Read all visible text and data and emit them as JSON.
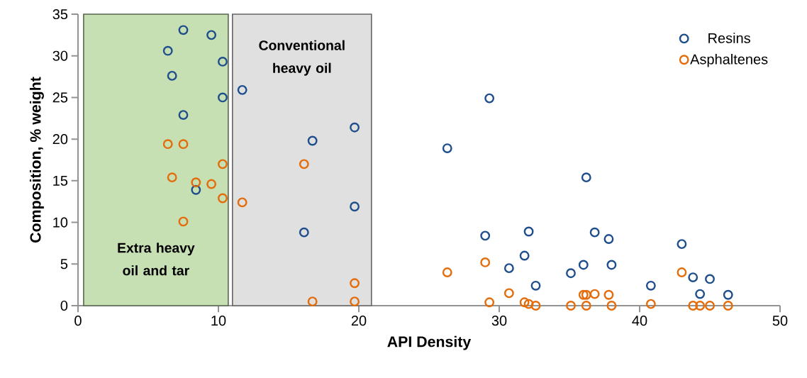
{
  "chart_data": {
    "type": "scatter",
    "xlabel": "API Density",
    "ylabel": "Composition, % weight",
    "xlim": [
      0,
      50
    ],
    "ylim": [
      0,
      35
    ],
    "xticks": [
      0,
      10,
      20,
      30,
      40,
      50
    ],
    "yticks": [
      0,
      5,
      10,
      15,
      20,
      25,
      30,
      35
    ],
    "grid": false,
    "legend": "top right",
    "marker": "circle",
    "bands": [
      {
        "axis": "x",
        "from": 0.4,
        "to": 10.7,
        "label": "Extra heavy oil and tar",
        "color": "#c6e0b4"
      },
      {
        "axis": "x",
        "from": 11.0,
        "to": 20.9,
        "label": "Conventional heavy oil",
        "color": "#e0e0e0"
      }
    ],
    "series": [
      {
        "name": "Resins",
        "color": "#1f4e8c",
        "x": [
          7.5,
          9.5,
          6.4,
          10.3,
          6.7,
          10.3,
          7.5,
          8.4,
          11.7,
          16.7,
          19.7,
          16.1,
          19.7,
          26.3,
          29.3,
          29.0,
          32.1,
          30.7,
          31.8,
          32.6,
          36.2,
          35.1,
          36.0,
          36.8,
          37.8,
          38.0,
          40.8,
          43.0,
          43.8,
          45.0,
          44.3,
          46.3
        ],
        "values": [
          33.1,
          32.5,
          30.6,
          29.3,
          27.6,
          25.0,
          22.9,
          13.9,
          25.9,
          19.8,
          21.4,
          8.8,
          11.9,
          18.9,
          24.9,
          8.4,
          8.9,
          4.5,
          6.0,
          2.4,
          15.4,
          3.9,
          4.9,
          8.8,
          8.0,
          4.9,
          2.4,
          7.4,
          3.4,
          3.2,
          1.4,
          1.3
        ]
      },
      {
        "name": "Asphaltenes",
        "color": "#e46c0a",
        "x": [
          6.4,
          7.5,
          10.3,
          6.7,
          8.4,
          9.5,
          10.3,
          7.5,
          11.7,
          16.1,
          19.7,
          16.7,
          19.7,
          26.3,
          29.0,
          29.3,
          30.7,
          31.8,
          32.1,
          32.6,
          35.1,
          36.0,
          36.2,
          36.8,
          36.2,
          37.8,
          38.0,
          40.8,
          43.0,
          43.8,
          44.3,
          45.0,
          46.3
        ],
        "values": [
          19.4,
          19.4,
          17.0,
          15.4,
          14.8,
          14.6,
          12.9,
          10.1,
          12.4,
          17.0,
          2.7,
          0.5,
          0.5,
          4.0,
          5.2,
          0.4,
          1.5,
          0.4,
          0.2,
          0,
          0,
          1.3,
          1.3,
          1.4,
          0,
          1.3,
          0,
          0.2,
          4.0,
          0,
          0,
          0,
          0
        ]
      }
    ]
  }
}
